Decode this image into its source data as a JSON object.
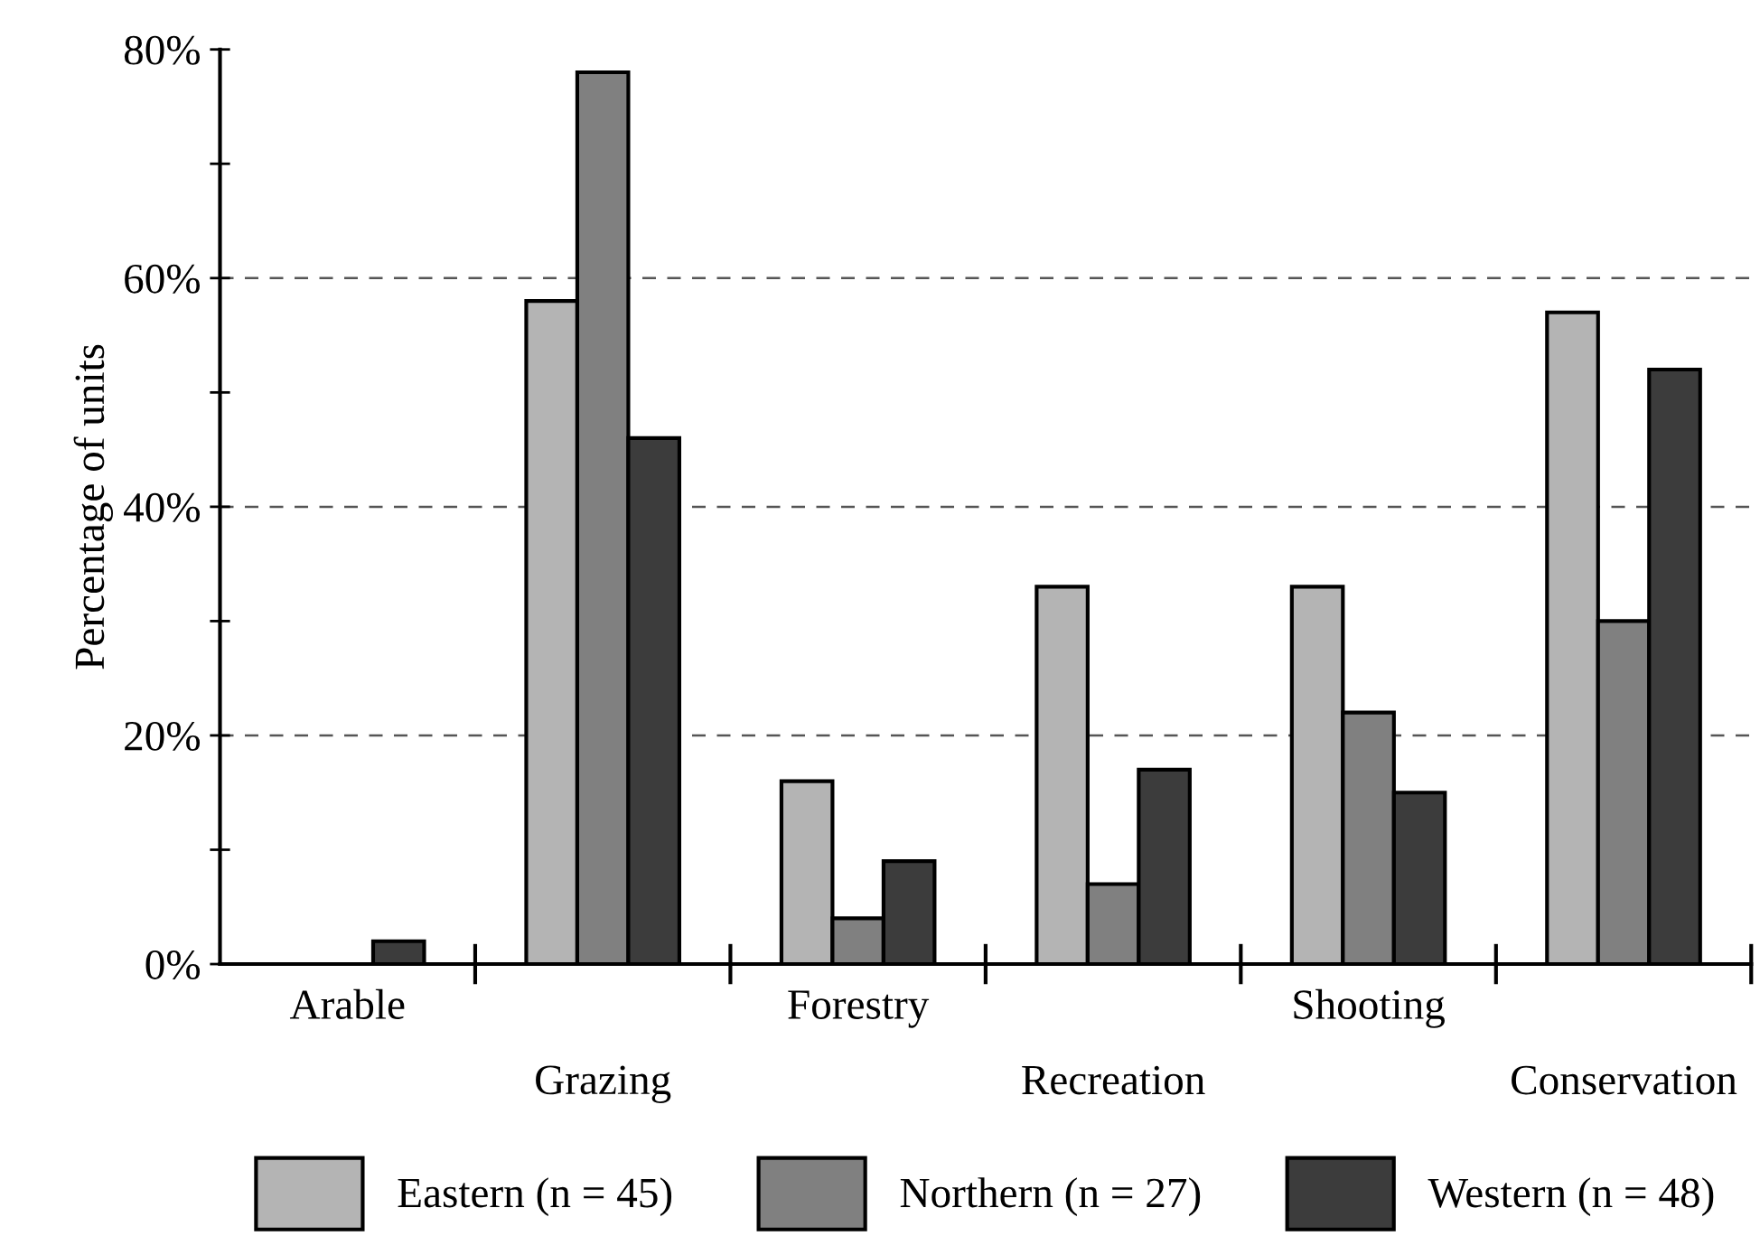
{
  "chart_data": {
    "type": "bar",
    "ylabel": "Percentage of units",
    "categories": [
      "Arable",
      "Grazing",
      "Forestry",
      "Recreation",
      "Shooting",
      "Conservation"
    ],
    "series": [
      {
        "name": "Eastern (n = 45)",
        "color": "#b4b4b4",
        "values": [
          0,
          58,
          16,
          33,
          33,
          57
        ]
      },
      {
        "name": "Northern (n = 27)",
        "color": "#808080",
        "values": [
          0,
          78,
          4,
          7,
          22,
          30
        ]
      },
      {
        "name": "Western (n = 48)",
        "color": "#3c3c3c",
        "values": [
          2,
          46,
          9,
          17,
          15,
          52
        ]
      }
    ],
    "ylim": [
      0,
      80
    ],
    "yticks": [
      {
        "value": 0,
        "label": "0%"
      },
      {
        "value": 10,
        "label": null
      },
      {
        "value": 20,
        "label": "20%"
      },
      {
        "value": 30,
        "label": null
      },
      {
        "value": 40,
        "label": "40%"
      },
      {
        "value": 50,
        "label": null
      },
      {
        "value": 60,
        "label": "60%"
      },
      {
        "value": 70,
        "label": null
      },
      {
        "value": 80,
        "label": "80%"
      }
    ],
    "grid": "y",
    "legend": "bottom"
  }
}
